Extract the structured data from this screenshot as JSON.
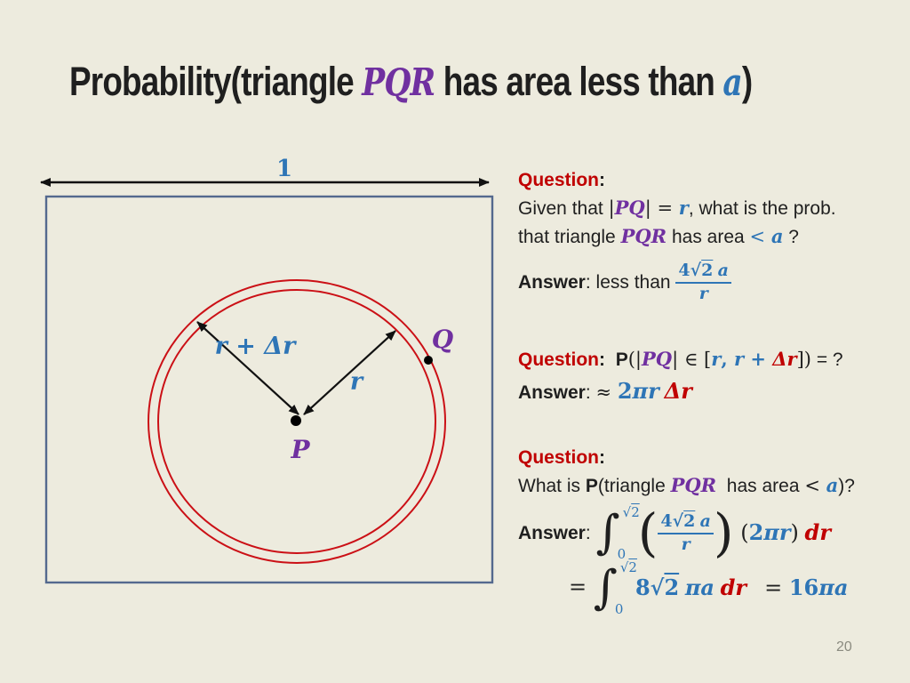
{
  "colors": {
    "bg": "#edebde",
    "ink": "#1f1f1f",
    "blue": "#2e75b6",
    "purple": "#7030a0",
    "red": "#c00000",
    "circlered": "#cb1016",
    "boxblue": "#54698e",
    "gray": "#8b8b80"
  },
  "slide": {
    "title_segments": [
      {
        "t": "Probability(triangle ",
        "s": ""
      },
      {
        "t": "PQR",
        "s": "tp"
      },
      {
        "t": " has area less than ",
        "s": ""
      },
      {
        "t": "a",
        "s": "tb"
      },
      {
        "t": ")",
        "s": ""
      }
    ],
    "page_number": "20"
  },
  "diagram": {
    "width_label": "1",
    "labels": {
      "r_plus_dr": "r + Δr",
      "r": "r",
      "P": "P",
      "Q": "Q"
    }
  },
  "qa": {
    "q1_heading": [
      {
        "t": "Question",
        "s": "rb"
      },
      {
        "t": ":",
        "s": "kb"
      }
    ],
    "q1_line1": [
      {
        "t": "Given that ",
        "s": "k"
      },
      {
        "t": "|",
        "s": "km"
      },
      {
        "t": "PQ",
        "s": "pbi"
      },
      {
        "t": "| = ",
        "s": "km"
      },
      {
        "t": "r",
        "s": "bbi"
      },
      {
        "t": ", what is the prob.",
        "s": "k"
      }
    ],
    "q1_line2": [
      {
        "t": "that triangle ",
        "s": "k"
      },
      {
        "t": "PQR",
        "s": "pbi"
      },
      {
        "t": " has area ",
        "s": "k"
      },
      {
        "t": "< ",
        "s": "bm"
      },
      {
        "t": "a",
        "s": "bbi"
      },
      {
        "t": " ?",
        "s": "k"
      }
    ],
    "a1_prefix": [
      {
        "t": "Answer",
        "s": "kb"
      },
      {
        "t": ": less than ",
        "s": "k"
      }
    ],
    "a1_frac_num": [
      {
        "t": "4√",
        "s": "bmb"
      },
      {
        "t": "2",
        "s": "bmb ol"
      },
      {
        "t": " ",
        "s": "k"
      },
      {
        "t": "a",
        "s": "bbi"
      }
    ],
    "a1_frac_den": [
      {
        "t": "r",
        "s": "bbi"
      }
    ],
    "q2_line": [
      {
        "t": "Question",
        "s": "rb"
      },
      {
        "t": ":  ",
        "s": "kb"
      },
      {
        "t": "P",
        "s": "kb"
      },
      {
        "t": "(|",
        "s": "km"
      },
      {
        "t": "PQ",
        "s": "pbi"
      },
      {
        "t": "| ∈ [",
        "s": "km"
      },
      {
        "t": "r",
        "s": "bbi"
      },
      {
        "t": ", ",
        "s": "bmb"
      },
      {
        "t": "r",
        "s": "bbi"
      },
      {
        "t": " + ",
        "s": "bmb"
      },
      {
        "t": "Δr",
        "s": "rbi"
      },
      {
        "t": "])",
        "s": "km"
      },
      {
        "t": " = ?",
        "s": "k"
      }
    ],
    "a2_line": [
      {
        "t": "Answer",
        "s": "kb"
      },
      {
        "t": ": ",
        "s": "k"
      },
      {
        "t": "≈ ",
        "s": "km"
      },
      {
        "t": "2",
        "s": "bmb big"
      },
      {
        "t": "πr",
        "s": "bbi big"
      },
      {
        "t": " ",
        "s": "k"
      },
      {
        "t": "Δr",
        "s": "rbi big"
      }
    ],
    "q3_heading": [
      {
        "t": "Question",
        "s": "rb"
      },
      {
        "t": ":",
        "s": "kb"
      }
    ],
    "q3_line": [
      {
        "t": "What is ",
        "s": "k"
      },
      {
        "t": "P",
        "s": "kb"
      },
      {
        "t": "(triangle ",
        "s": "k"
      },
      {
        "t": "PQR",
        "s": "pbi"
      },
      {
        "t": "  has area ",
        "s": "k"
      },
      {
        "t": "< ",
        "s": "km"
      },
      {
        "t": "a",
        "s": "bbi"
      },
      {
        "t": ")?",
        "s": "k"
      }
    ],
    "a3_prefix": [
      {
        "t": "Answer",
        "s": "kb"
      },
      {
        "t": ": ",
        "s": "k"
      }
    ],
    "a3_int1_upper": [
      {
        "t": "√",
        "s": "bm"
      },
      {
        "t": "2",
        "s": "bm ol"
      }
    ],
    "a3_int1_lower": [
      {
        "t": "0",
        "s": "bm"
      }
    ],
    "a3_frac_num": [
      {
        "t": "4√",
        "s": "bmb"
      },
      {
        "t": "2",
        "s": "bmb ol"
      },
      {
        "t": " ",
        "s": "k"
      },
      {
        "t": "a",
        "s": "bbi"
      }
    ],
    "a3_frac_den": [
      {
        "t": "r",
        "s": "bbi"
      }
    ],
    "a3_after": [
      {
        "t": " (",
        "s": "km big"
      },
      {
        "t": "2",
        "s": "bmb big"
      },
      {
        "t": "πr",
        "s": "bbi big"
      },
      {
        "t": ")",
        "s": "km big"
      },
      {
        "t": " ",
        "s": "k"
      },
      {
        "t": "dr",
        "s": "rbi big"
      }
    ],
    "a3_eq2_prefix": [
      {
        "t": "= ",
        "s": "km big"
      }
    ],
    "a3_int2_upper": [
      {
        "t": "√",
        "s": "bm"
      },
      {
        "t": "2",
        "s": "bm ol"
      }
    ],
    "a3_int2_lower": [
      {
        "t": "0",
        "s": "bm"
      }
    ],
    "a3_eq2_body": [
      {
        "t": "8√",
        "s": "bmb big"
      },
      {
        "t": "2",
        "s": "bmb big ol"
      },
      {
        "t": " ",
        "s": "k"
      },
      {
        "t": "πa",
        "s": "bbi big"
      },
      {
        "t": " ",
        "s": "k"
      },
      {
        "t": "dr",
        "s": "rbi big"
      },
      {
        "t": "   ",
        "s": "k"
      },
      {
        "t": "= ",
        "s": "km big"
      },
      {
        "t": "16",
        "s": "bmb big"
      },
      {
        "t": "πa",
        "s": "bbi big"
      }
    ]
  }
}
